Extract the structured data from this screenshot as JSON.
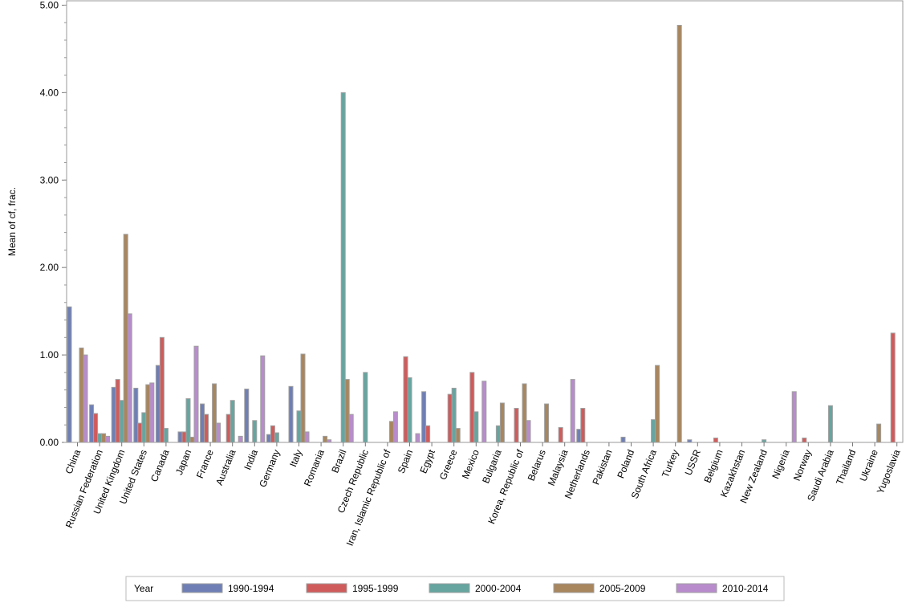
{
  "chart_data": {
    "type": "bar",
    "title": "",
    "xlabel": "",
    "ylabel": "Mean of cf, frac.",
    "ylim": [
      0,
      5.05
    ],
    "yticks": [
      "0.00",
      "1.00",
      "2.00",
      "3.00",
      "4.00",
      "5.00"
    ],
    "ytick_values": [
      0,
      1,
      2,
      3,
      4,
      5
    ],
    "legend_title": "Year",
    "legend_position": "bottom",
    "categories": [
      "China",
      "Russian Federation",
      "United Kingdom",
      "United States",
      "Canada",
      "Japan",
      "France",
      "Australia",
      "India",
      "Germany",
      "Italy",
      "Romania",
      "Brazil",
      "Czech Republic",
      "Iran, Islamic Republic of",
      "Spain",
      "Egypt",
      "Greece",
      "Mexico",
      "Bulgaria",
      "Korea, Republic of",
      "Belarus",
      "Malaysia",
      "Netherlands",
      "Pakistan",
      "Poland",
      "South Africa",
      "Turkey",
      "USSR",
      "Belgium",
      "Kazakhstan",
      "New Zealand",
      "Nigeria",
      "Norway",
      "Saudi Arabia",
      "Thailand",
      "Ukraine",
      "Yugoslavia"
    ],
    "series": [
      {
        "name": "1990-1994",
        "color": "#6f7fb5",
        "values": [
          1.55,
          0.43,
          0.63,
          0.62,
          0.88,
          0.12,
          0.44,
          null,
          0.61,
          0.09,
          0.64,
          null,
          null,
          null,
          null,
          null,
          0.58,
          null,
          null,
          null,
          null,
          null,
          null,
          0.15,
          null,
          0.06,
          null,
          null,
          0.03,
          null,
          null,
          null,
          null,
          null,
          null,
          null,
          null,
          null
        ]
      },
      {
        "name": "1995-1999",
        "color": "#d05b5b",
        "values": [
          null,
          0.33,
          0.72,
          0.22,
          1.2,
          0.12,
          0.32,
          0.32,
          null,
          0.19,
          null,
          null,
          null,
          null,
          null,
          0.98,
          0.19,
          0.55,
          0.8,
          null,
          0.39,
          null,
          0.17,
          0.39,
          null,
          null,
          null,
          null,
          null,
          0.05,
          null,
          null,
          null,
          0.05,
          null,
          null,
          null,
          1.25
        ]
      },
      {
        "name": "2000-2004",
        "color": "#66a5a0",
        "values": [
          null,
          0.1,
          0.48,
          0.34,
          0.16,
          0.5,
          null,
          0.48,
          0.25,
          0.11,
          0.36,
          null,
          4.0,
          0.8,
          null,
          0.74,
          null,
          0.62,
          0.35,
          0.19,
          null,
          null,
          null,
          null,
          null,
          null,
          0.26,
          null,
          null,
          null,
          null,
          0.03,
          null,
          null,
          0.42,
          null,
          null,
          null
        ]
      },
      {
        "name": "2005-2009",
        "color": "#a8865e",
        "values": [
          1.08,
          0.1,
          2.38,
          0.66,
          null,
          0.06,
          0.67,
          null,
          null,
          null,
          1.01,
          0.07,
          0.72,
          null,
          0.24,
          null,
          null,
          0.16,
          null,
          0.45,
          0.67,
          0.44,
          null,
          null,
          null,
          null,
          0.88,
          4.77,
          null,
          null,
          null,
          null,
          null,
          null,
          null,
          null,
          0.21,
          null
        ]
      },
      {
        "name": "2010-2014",
        "color": "#b88ccc",
        "values": [
          1.0,
          0.07,
          1.47,
          0.68,
          null,
          1.1,
          0.22,
          0.07,
          0.99,
          null,
          0.12,
          0.03,
          0.32,
          null,
          0.35,
          0.1,
          null,
          null,
          0.7,
          null,
          0.25,
          null,
          0.72,
          null,
          null,
          null,
          null,
          null,
          null,
          null,
          null,
          null,
          0.58,
          null,
          null,
          null,
          null,
          null
        ]
      }
    ]
  }
}
